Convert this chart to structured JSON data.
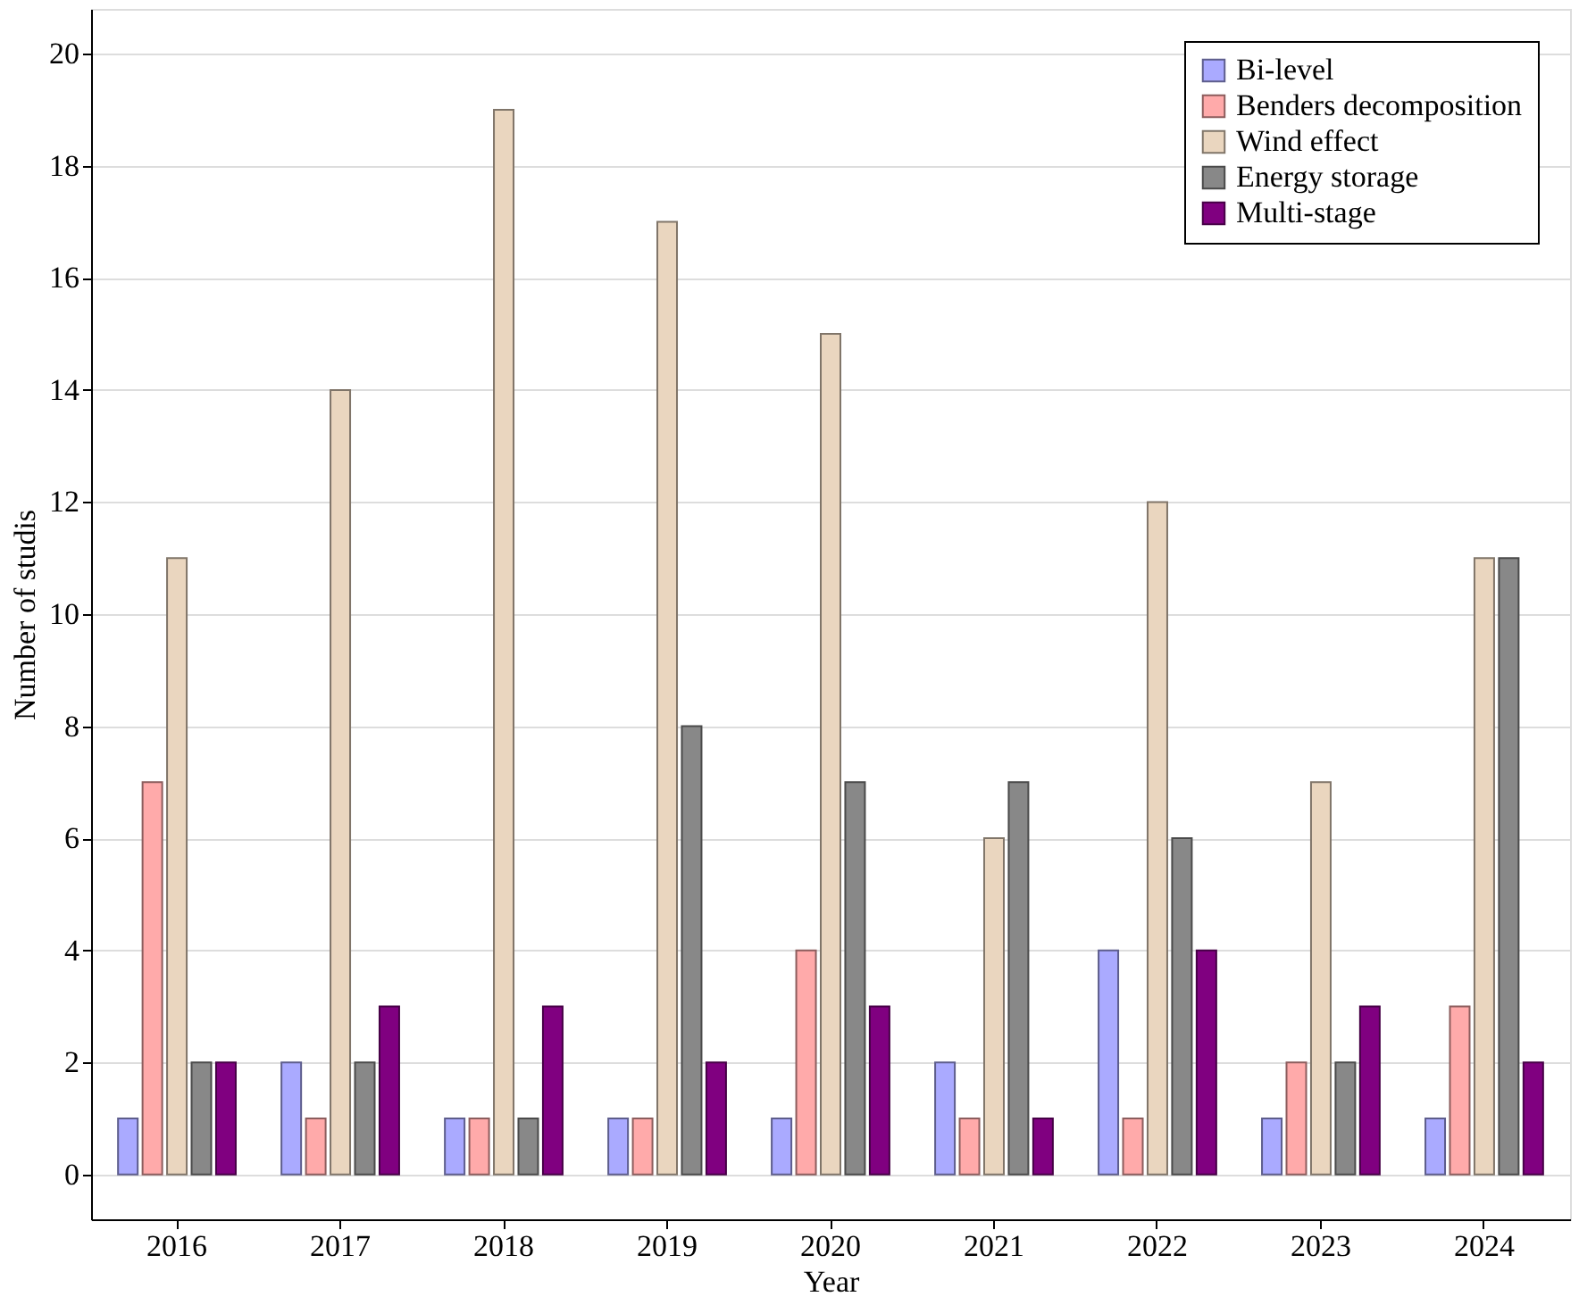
{
  "chart_data": {
    "type": "bar",
    "xlabel": "Year",
    "ylabel": "Number of studis",
    "categories": [
      "2016",
      "2017",
      "2018",
      "2019",
      "2020",
      "2021",
      "2022",
      "2023",
      "2024"
    ],
    "series": [
      {
        "name": "Bi-level",
        "color": "#aaaaff",
        "values": [
          1,
          2,
          1,
          1,
          1,
          2,
          4,
          1,
          1
        ]
      },
      {
        "name": "Benders decomposition",
        "color": "#ffaaaa",
        "values": [
          7,
          1,
          1,
          1,
          4,
          1,
          1,
          2,
          3
        ]
      },
      {
        "name": "Wind effect",
        "color": "#ead6bf",
        "values": [
          11,
          14,
          19,
          17,
          15,
          6,
          12,
          7,
          11
        ]
      },
      {
        "name": "Energy storage",
        "color": "#888888",
        "values": [
          2,
          2,
          1,
          8,
          7,
          7,
          6,
          2,
          11
        ]
      },
      {
        "name": "Multi-stage",
        "color": "#800080",
        "values": [
          2,
          3,
          3,
          2,
          3,
          1,
          4,
          3,
          2
        ]
      }
    ],
    "ylim": [
      -0.8,
      20.8
    ],
    "yticks": [
      0,
      2,
      4,
      6,
      8,
      10,
      12,
      14,
      16,
      18,
      20
    ],
    "grid": "y",
    "legend": "top right"
  }
}
